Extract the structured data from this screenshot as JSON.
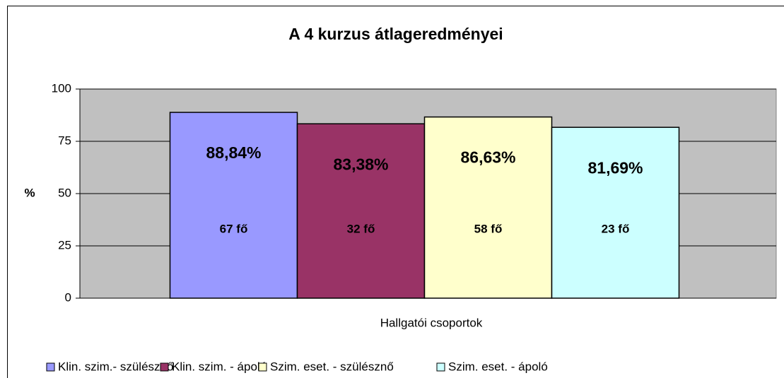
{
  "chart_data": {
    "type": "bar",
    "title": "A 4 kurzus átlageredményei",
    "y_label": "%",
    "x_label": "Hallgatói csoportok",
    "ylim": [
      0,
      100
    ],
    "yticks": [
      0,
      25,
      50,
      75,
      100
    ],
    "grid": true,
    "series": [
      {
        "name": "Klin. szim.- szülésznő",
        "color": "#9999ff",
        "values": [
          88.84
        ],
        "value_labels": [
          "88,84%"
        ],
        "annotation": "67 fő"
      },
      {
        "name": "Klin. szim. - ápoló",
        "color": "#993366",
        "values": [
          83.38
        ],
        "value_labels": [
          "83,38%"
        ],
        "annotation": "32 fő"
      },
      {
        "name": "Szim. eset. - szülésznő",
        "color": "#ffffcc",
        "values": [
          86.63
        ],
        "value_labels": [
          "86,63%"
        ],
        "annotation": "58 fő"
      },
      {
        "name": "Szim. eset. - ápoló",
        "color": "#ccffff",
        "values": [
          81.69
        ],
        "value_labels": [
          "81,69%"
        ],
        "annotation": "23 fő"
      }
    ]
  }
}
